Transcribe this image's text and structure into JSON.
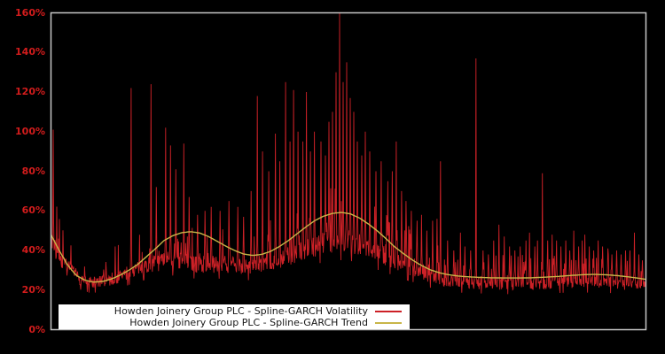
{
  "colors": {
    "background": "#000000",
    "frame": "#c6c6c6",
    "tick_label": "#d21c1c",
    "legend_background": "#ffffff",
    "legend_text": "#161616"
  },
  "legend": {
    "position": "lower-center"
  },
  "chart_data": {
    "type": "line",
    "title": "",
    "grid": false,
    "legend_position": "lower-center",
    "x_axis": {
      "tick_labels_visible": false
    },
    "y_axis": {
      "unit": "%",
      "min": 0,
      "max": 160,
      "tick_step": 20,
      "tick_labels": [
        "0%",
        "20%",
        "40%",
        "60%",
        "80%",
        "100%",
        "120%",
        "140%",
        "160%"
      ]
    },
    "series": [
      {
        "name": "Howden Joinery Group PLC - Spline-GARCH Volatility",
        "color": "#cd2127",
        "style": "noisy-line",
        "baseline_pct": [
          [
            0.0,
            46
          ],
          [
            0.007,
            40
          ],
          [
            0.019,
            34
          ],
          [
            0.034,
            29
          ],
          [
            0.049,
            26
          ],
          [
            0.064,
            24
          ],
          [
            0.079,
            24
          ],
          [
            0.094,
            25
          ],
          [
            0.109,
            26
          ],
          [
            0.124,
            28
          ],
          [
            0.138,
            30
          ],
          [
            0.153,
            32
          ],
          [
            0.168,
            33
          ],
          [
            0.183,
            34
          ],
          [
            0.198,
            35
          ],
          [
            0.213,
            35
          ],
          [
            0.228,
            34
          ],
          [
            0.243,
            33
          ],
          [
            0.272,
            33
          ],
          [
            0.302,
            33
          ],
          [
            0.332,
            32
          ],
          [
            0.362,
            34
          ],
          [
            0.391,
            36
          ],
          [
            0.421,
            40
          ],
          [
            0.451,
            43
          ],
          [
            0.481,
            45
          ],
          [
            0.496,
            45
          ],
          [
            0.51,
            44
          ],
          [
            0.54,
            40
          ],
          [
            0.57,
            36
          ],
          [
            0.6,
            32
          ],
          [
            0.629,
            28
          ],
          [
            0.659,
            25
          ],
          [
            0.689,
            24
          ],
          [
            0.749,
            23
          ],
          [
            0.808,
            23
          ],
          [
            0.868,
            24
          ],
          [
            0.927,
            24
          ],
          [
            0.972,
            23
          ],
          [
            1.0,
            22
          ]
        ],
        "spikes_pct": [
          [
            0.004,
            101
          ],
          [
            0.135,
            122
          ],
          [
            0.168,
            124
          ],
          [
            0.177,
            72
          ],
          [
            0.193,
            102
          ],
          [
            0.201,
            93
          ],
          [
            0.21,
            81
          ],
          [
            0.223,
            94
          ],
          [
            0.232,
            67
          ],
          [
            0.246,
            58
          ],
          [
            0.259,
            60
          ],
          [
            0.269,
            62
          ],
          [
            0.284,
            60
          ],
          [
            0.299,
            65
          ],
          [
            0.314,
            62
          ],
          [
            0.324,
            57
          ],
          [
            0.336,
            70
          ],
          [
            0.347,
            118
          ],
          [
            0.356,
            90
          ],
          [
            0.366,
            80
          ],
          [
            0.377,
            99
          ],
          [
            0.385,
            85
          ],
          [
            0.394,
            125
          ],
          [
            0.402,
            95
          ],
          [
            0.408,
            121
          ],
          [
            0.415,
            100
          ],
          [
            0.423,
            95
          ],
          [
            0.429,
            120
          ],
          [
            0.436,
            90
          ],
          [
            0.443,
            100
          ],
          [
            0.454,
            95
          ],
          [
            0.461,
            88
          ],
          [
            0.467,
            105
          ],
          [
            0.473,
            110
          ],
          [
            0.479,
            130
          ],
          [
            0.485,
            160
          ],
          [
            0.491,
            125
          ],
          [
            0.497,
            135
          ],
          [
            0.503,
            117
          ],
          [
            0.509,
            110
          ],
          [
            0.515,
            95
          ],
          [
            0.522,
            88
          ],
          [
            0.528,
            100
          ],
          [
            0.536,
            90
          ],
          [
            0.546,
            80
          ],
          [
            0.555,
            85
          ],
          [
            0.566,
            75
          ],
          [
            0.574,
            80
          ],
          [
            0.58,
            95
          ],
          [
            0.589,
            70
          ],
          [
            0.597,
            65
          ],
          [
            0.606,
            60
          ],
          [
            0.615,
            55
          ],
          [
            0.623,
            58
          ],
          [
            0.632,
            50
          ],
          [
            0.641,
            55
          ],
          [
            0.649,
            56
          ],
          [
            0.655,
            85
          ],
          [
            0.667,
            45
          ],
          [
            0.677,
            40
          ],
          [
            0.688,
            49
          ],
          [
            0.696,
            42
          ],
          [
            0.705,
            40
          ],
          [
            0.714,
            137
          ],
          [
            0.726,
            40
          ],
          [
            0.735,
            38
          ],
          [
            0.744,
            45
          ],
          [
            0.753,
            53
          ],
          [
            0.762,
            47
          ],
          [
            0.771,
            42
          ],
          [
            0.78,
            40
          ],
          [
            0.789,
            42
          ],
          [
            0.798,
            45
          ],
          [
            0.804,
            49
          ],
          [
            0.813,
            42
          ],
          [
            0.818,
            45
          ],
          [
            0.826,
            79
          ],
          [
            0.835,
            45
          ],
          [
            0.842,
            48
          ],
          [
            0.85,
            45
          ],
          [
            0.857,
            42
          ],
          [
            0.865,
            45
          ],
          [
            0.872,
            40
          ],
          [
            0.879,
            50
          ],
          [
            0.887,
            42
          ],
          [
            0.893,
            45
          ],
          [
            0.897,
            48
          ],
          [
            0.905,
            42
          ],
          [
            0.912,
            40
          ],
          [
            0.92,
            45
          ],
          [
            0.927,
            42
          ],
          [
            0.936,
            41
          ],
          [
            0.943,
            38
          ],
          [
            0.951,
            40
          ],
          [
            0.958,
            38
          ],
          [
            0.966,
            40
          ],
          [
            0.973,
            40
          ],
          [
            0.981,
            49
          ],
          [
            0.988,
            38
          ],
          [
            0.994,
            35
          ]
        ]
      },
      {
        "name": "Howden Joinery Group PLC - Spline-GARCH Trend",
        "color": "#c8b548",
        "style": "smooth-line",
        "points_pct": [
          [
            0.0,
            48
          ],
          [
            0.012,
            41
          ],
          [
            0.027,
            33
          ],
          [
            0.042,
            27.5
          ],
          [
            0.057,
            25
          ],
          [
            0.071,
            24
          ],
          [
            0.086,
            24.3
          ],
          [
            0.101,
            25.5
          ],
          [
            0.116,
            27.5
          ],
          [
            0.131,
            30
          ],
          [
            0.146,
            33
          ],
          [
            0.161,
            37
          ],
          [
            0.176,
            41
          ],
          [
            0.19,
            45
          ],
          [
            0.205,
            47.5
          ],
          [
            0.22,
            49
          ],
          [
            0.235,
            49.5
          ],
          [
            0.25,
            48.8
          ],
          [
            0.265,
            47
          ],
          [
            0.28,
            44.5
          ],
          [
            0.295,
            42
          ],
          [
            0.31,
            39.8
          ],
          [
            0.324,
            38.2
          ],
          [
            0.339,
            37.5
          ],
          [
            0.354,
            38
          ],
          [
            0.369,
            39.5
          ],
          [
            0.384,
            42
          ],
          [
            0.399,
            45
          ],
          [
            0.414,
            48.5
          ],
          [
            0.429,
            52
          ],
          [
            0.443,
            55
          ],
          [
            0.458,
            57.3
          ],
          [
            0.473,
            58.7
          ],
          [
            0.488,
            59.2
          ],
          [
            0.503,
            58.5
          ],
          [
            0.518,
            56.5
          ],
          [
            0.533,
            53.5
          ],
          [
            0.548,
            50
          ],
          [
            0.563,
            46
          ],
          [
            0.577,
            42
          ],
          [
            0.592,
            38.5
          ],
          [
            0.607,
            35.3
          ],
          [
            0.622,
            32.5
          ],
          [
            0.637,
            30.3
          ],
          [
            0.652,
            28.8
          ],
          [
            0.667,
            27.8
          ],
          [
            0.681,
            27.2
          ],
          [
            0.696,
            26.8
          ],
          [
            0.719,
            26.4
          ],
          [
            0.741,
            26.2
          ],
          [
            0.763,
            26.1
          ],
          [
            0.786,
            26.1
          ],
          [
            0.808,
            26.2
          ],
          [
            0.83,
            26.5
          ],
          [
            0.853,
            26.9
          ],
          [
            0.875,
            27.4
          ],
          [
            0.897,
            27.8
          ],
          [
            0.915,
            27.9
          ],
          [
            0.934,
            27.7
          ],
          [
            0.952,
            27.3
          ],
          [
            0.972,
            26.6
          ],
          [
            0.987,
            26.0
          ],
          [
            1.0,
            25.4
          ]
        ]
      }
    ]
  }
}
